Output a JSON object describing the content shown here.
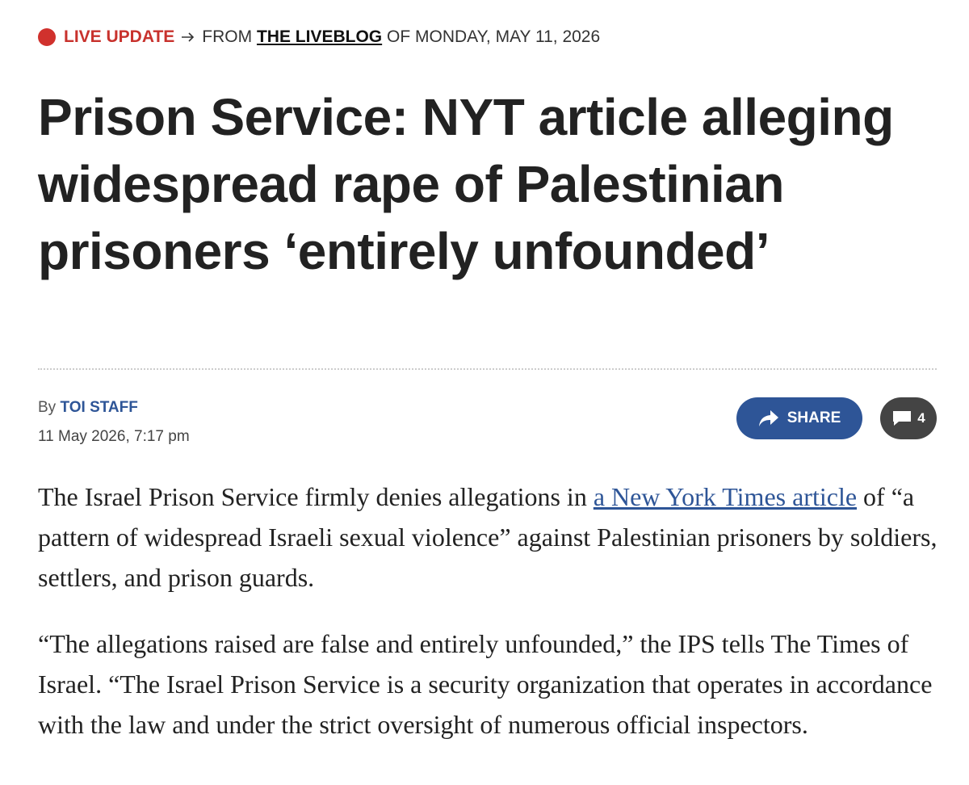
{
  "header": {
    "live_label": "LIVE UPDATE",
    "from_text": "FROM",
    "liveblog": "THE LIVEBLOG",
    "date_text": "OF MONDAY, MAY 11, 2026"
  },
  "headline": "Prison Service: NYT article alleging widespread rape of Palestinian prisoners ‘entirely unfounded’",
  "byline": {
    "by": "By",
    "author": "TOI STAFF",
    "timestamp": "11 May 2026, 7:17 pm"
  },
  "actions": {
    "share": "SHARE",
    "comments": "4"
  },
  "paragraphs": [
    {
      "before": "The Israel Prison Service firmly denies allegations in ",
      "link": "a New York Times article",
      "after": " of “a pattern of widespread Israeli sexual violence” against Palestinian prisoners by soldiers, settlers, and prison guards."
    },
    {
      "text": "“The allegations raised are false and entirely unfounded,” the IPS tells The Times of Israel. “The Israel Prison Service is a security organization that operates in accordance with the law and under the strict oversight of numerous official inspectors."
    }
  ]
}
